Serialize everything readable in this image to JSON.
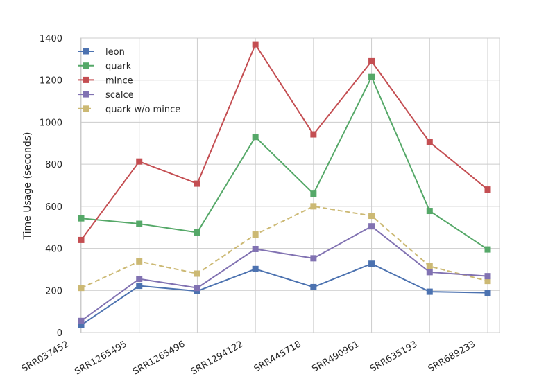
{
  "chart_data": {
    "type": "line",
    "title": "",
    "xlabel": "",
    "ylabel": "Time Usage (seconds)",
    "ylim": [
      0,
      1400
    ],
    "yticks": [
      0,
      200,
      400,
      600,
      800,
      1000,
      1200,
      1400
    ],
    "grid": true,
    "legend_position": "top-left",
    "categories": [
      "SRR037452",
      "SRR1265495",
      "SRR1265496",
      "SRR1294122",
      "SRR445718",
      "SRR490961",
      "SRR635193",
      "SRR689233"
    ],
    "series": [
      {
        "name": "leon",
        "color": "#4c72b0",
        "dashed": false,
        "marker": "square",
        "values": [
          35,
          222,
          197,
          302,
          216,
          327,
          194,
          189
        ]
      },
      {
        "name": "quark",
        "color": "#55a868",
        "dashed": false,
        "marker": "square",
        "values": [
          543,
          517,
          476,
          930,
          660,
          1215,
          578,
          395
        ]
      },
      {
        "name": "mince",
        "color": "#c44e52",
        "dashed": false,
        "marker": "square",
        "values": [
          440,
          813,
          708,
          1370,
          942,
          1290,
          905,
          680
        ]
      },
      {
        "name": "scalce",
        "color": "#8172b2",
        "dashed": false,
        "marker": "square",
        "values": [
          55,
          255,
          212,
          397,
          353,
          505,
          287,
          268
        ]
      },
      {
        "name": "quark w/o mince",
        "color": "#ccb974",
        "dashed": true,
        "marker": "square",
        "values": [
          212,
          338,
          280,
          466,
          600,
          555,
          315,
          245
        ]
      }
    ]
  }
}
